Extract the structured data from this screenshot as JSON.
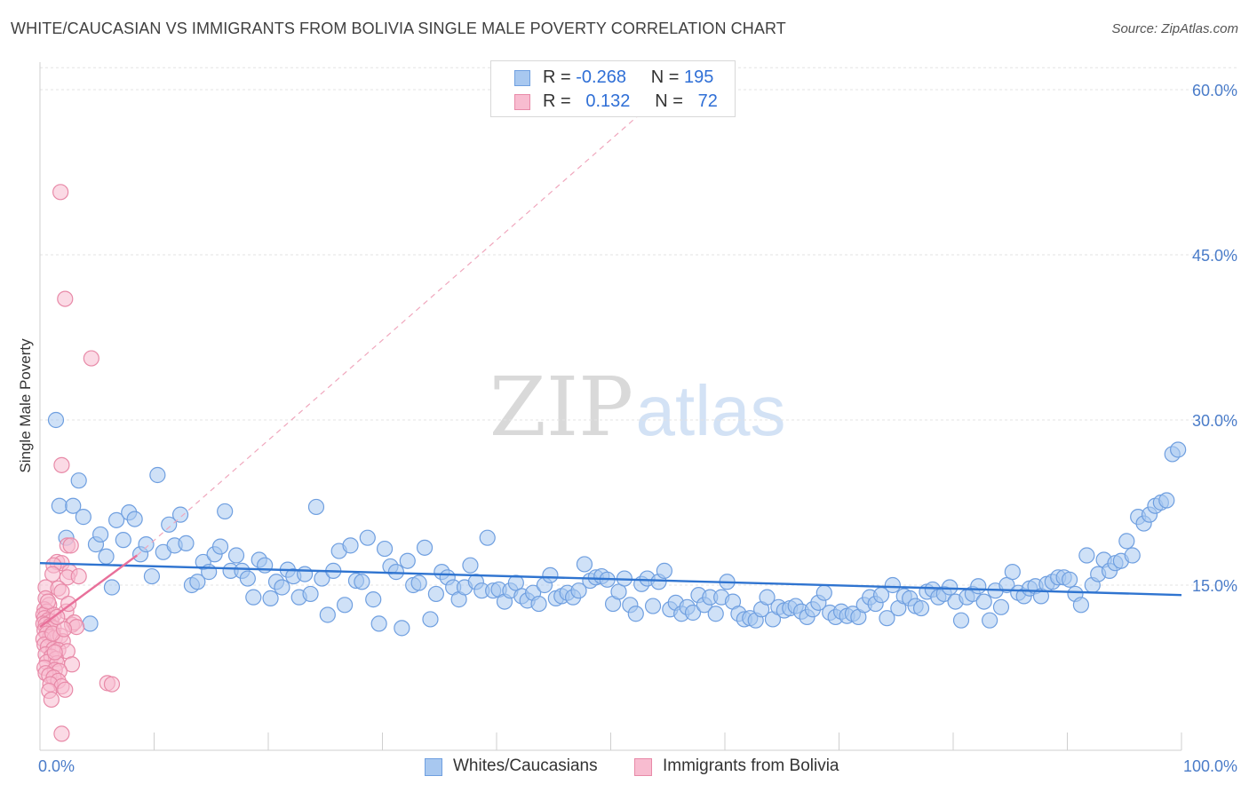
{
  "title": "WHITE/CAUCASIAN VS IMMIGRANTS FROM BOLIVIA SINGLE MALE POVERTY CORRELATION CHART",
  "source": "Source: ZipAtlas.com",
  "watermark": {
    "zip": "ZIP",
    "atlas": "atlas"
  },
  "legend": {
    "rows": [
      {
        "r_label": "R =",
        "r_value": "-0.268",
        "n_label": "N =",
        "n_value": "195",
        "color": "#a8c8f0",
        "border": "#6f9fe0"
      },
      {
        "r_label": "R =",
        "r_value": "0.132",
        "n_label": "N =",
        "n_value": "72",
        "color": "#f8bcd0",
        "border": "#e88aa8"
      }
    ]
  },
  "chart_data": {
    "type": "scatter",
    "title": "WHITE/CAUCASIAN VS IMMIGRANTS FROM BOLIVIA SINGLE MALE POVERTY CORRELATION CHART",
    "xlabel": "",
    "ylabel": "Single Male Poverty",
    "xlim": [
      0,
      100
    ],
    "ylim": [
      0,
      62.5
    ],
    "x_tick_labels": [
      "0.0%",
      "100.0%"
    ],
    "y_ticks": [
      15,
      30,
      45,
      60
    ],
    "y_tick_labels": [
      "15.0%",
      "30.0%",
      "45.0%",
      "60.0%"
    ],
    "grid": true,
    "legend_position": "bottom-center",
    "series": [
      {
        "name": "Whites/Caucasians",
        "color": "#a8c8f0",
        "edge": "#6f9fe0",
        "trend": {
          "x": [
            0,
            100
          ],
          "y": [
            17.0,
            14.1
          ],
          "color": "#2f74d0"
        },
        "points": [
          [
            1.4,
            30.0
          ],
          [
            1.7,
            22.2
          ],
          [
            2.3,
            19.3
          ],
          [
            2.9,
            22.2
          ],
          [
            3.4,
            24.5
          ],
          [
            3.8,
            21.2
          ],
          [
            4.4,
            11.5
          ],
          [
            4.9,
            18.7
          ],
          [
            5.3,
            19.6
          ],
          [
            5.8,
            17.6
          ],
          [
            6.3,
            14.8
          ],
          [
            6.7,
            20.9
          ],
          [
            7.3,
            19.1
          ],
          [
            7.8,
            21.6
          ],
          [
            8.3,
            21.0
          ],
          [
            8.8,
            17.8
          ],
          [
            9.3,
            18.7
          ],
          [
            9.8,
            15.8
          ],
          [
            10.3,
            25.0
          ],
          [
            10.8,
            18.0
          ],
          [
            11.3,
            20.5
          ],
          [
            11.8,
            18.6
          ],
          [
            12.3,
            21.4
          ],
          [
            12.8,
            18.8
          ],
          [
            13.3,
            15.0
          ],
          [
            13.8,
            15.3
          ],
          [
            14.3,
            17.1
          ],
          [
            14.8,
            16.2
          ],
          [
            15.3,
            17.8
          ],
          [
            15.8,
            18.5
          ],
          [
            16.2,
            21.7
          ],
          [
            16.7,
            16.3
          ],
          [
            17.2,
            17.7
          ],
          [
            17.7,
            16.3
          ],
          [
            18.2,
            15.6
          ],
          [
            18.7,
            13.9
          ],
          [
            19.2,
            17.3
          ],
          [
            19.7,
            16.8
          ],
          [
            20.2,
            13.8
          ],
          [
            20.7,
            15.3
          ],
          [
            21.2,
            14.8
          ],
          [
            21.7,
            16.4
          ],
          [
            22.2,
            15.8
          ],
          [
            22.7,
            13.9
          ],
          [
            23.2,
            16.0
          ],
          [
            23.7,
            14.2
          ],
          [
            24.2,
            22.1
          ],
          [
            24.7,
            15.6
          ],
          [
            25.2,
            12.3
          ],
          [
            25.7,
            16.3
          ],
          [
            26.2,
            18.1
          ],
          [
            26.7,
            13.2
          ],
          [
            27.2,
            18.6
          ],
          [
            27.7,
            15.4
          ],
          [
            28.2,
            15.3
          ],
          [
            28.7,
            19.3
          ],
          [
            29.2,
            13.7
          ],
          [
            29.7,
            11.5
          ],
          [
            30.2,
            18.3
          ],
          [
            30.7,
            16.7
          ],
          [
            31.2,
            16.2
          ],
          [
            31.7,
            11.1
          ],
          [
            32.2,
            17.2
          ],
          [
            32.7,
            15.0
          ],
          [
            33.2,
            15.2
          ],
          [
            33.7,
            18.4
          ],
          [
            34.2,
            11.9
          ],
          [
            34.7,
            14.2
          ],
          [
            35.2,
            16.2
          ],
          [
            35.7,
            15.7
          ],
          [
            36.2,
            14.8
          ],
          [
            36.7,
            13.7
          ],
          [
            37.2,
            14.8
          ],
          [
            37.7,
            16.8
          ],
          [
            38.2,
            15.3
          ],
          [
            38.7,
            14.5
          ],
          [
            39.2,
            19.3
          ],
          [
            39.7,
            14.5
          ],
          [
            40.2,
            14.6
          ],
          [
            40.7,
            13.5
          ],
          [
            41.2,
            14.5
          ],
          [
            41.7,
            15.2
          ],
          [
            42.2,
            14.0
          ],
          [
            42.7,
            13.6
          ],
          [
            43.2,
            14.3
          ],
          [
            43.7,
            13.3
          ],
          [
            44.2,
            15.0
          ],
          [
            44.7,
            15.9
          ],
          [
            45.2,
            13.8
          ],
          [
            45.7,
            14.0
          ],
          [
            46.2,
            14.3
          ],
          [
            46.7,
            13.9
          ],
          [
            47.2,
            14.5
          ],
          [
            47.7,
            16.9
          ],
          [
            48.2,
            15.4
          ],
          [
            48.7,
            15.7
          ],
          [
            49.2,
            15.8
          ],
          [
            49.7,
            15.5
          ],
          [
            50.2,
            13.3
          ],
          [
            50.7,
            14.4
          ],
          [
            51.2,
            15.6
          ],
          [
            51.7,
            13.2
          ],
          [
            52.2,
            12.4
          ],
          [
            52.7,
            15.1
          ],
          [
            53.2,
            15.6
          ],
          [
            53.7,
            13.1
          ],
          [
            54.2,
            15.3
          ],
          [
            54.7,
            16.3
          ],
          [
            55.2,
            12.8
          ],
          [
            55.7,
            13.4
          ],
          [
            56.2,
            12.4
          ],
          [
            56.7,
            13.0
          ],
          [
            57.2,
            12.5
          ],
          [
            57.7,
            14.1
          ],
          [
            58.2,
            13.2
          ],
          [
            58.7,
            13.9
          ],
          [
            59.2,
            12.4
          ],
          [
            59.7,
            13.9
          ],
          [
            60.2,
            15.3
          ],
          [
            60.7,
            13.5
          ],
          [
            61.2,
            12.4
          ],
          [
            61.7,
            11.9
          ],
          [
            62.2,
            12.0
          ],
          [
            62.7,
            11.8
          ],
          [
            63.2,
            12.8
          ],
          [
            63.7,
            13.9
          ],
          [
            64.2,
            11.9
          ],
          [
            64.7,
            13.0
          ],
          [
            65.2,
            12.7
          ],
          [
            65.7,
            12.9
          ],
          [
            66.2,
            13.1
          ],
          [
            66.7,
            12.6
          ],
          [
            67.2,
            12.1
          ],
          [
            67.7,
            12.8
          ],
          [
            68.2,
            13.4
          ],
          [
            68.7,
            14.3
          ],
          [
            69.2,
            12.5
          ],
          [
            69.7,
            12.1
          ],
          [
            70.2,
            12.6
          ],
          [
            70.7,
            12.2
          ],
          [
            71.2,
            12.4
          ],
          [
            71.7,
            12.1
          ],
          [
            72.2,
            13.2
          ],
          [
            72.7,
            13.9
          ],
          [
            73.2,
            13.3
          ],
          [
            73.7,
            14.1
          ],
          [
            74.2,
            12.0
          ],
          [
            74.7,
            15.0
          ],
          [
            75.2,
            12.9
          ],
          [
            75.7,
            14.0
          ],
          [
            76.2,
            13.8
          ],
          [
            76.7,
            13.1
          ],
          [
            77.2,
            12.9
          ],
          [
            77.7,
            14.4
          ],
          [
            78.2,
            14.6
          ],
          [
            78.7,
            13.9
          ],
          [
            79.2,
            14.2
          ],
          [
            79.7,
            14.8
          ],
          [
            80.2,
            13.5
          ],
          [
            80.7,
            11.8
          ],
          [
            81.2,
            13.9
          ],
          [
            81.7,
            14.2
          ],
          [
            82.2,
            14.9
          ],
          [
            82.7,
            13.5
          ],
          [
            83.2,
            11.8
          ],
          [
            83.7,
            14.5
          ],
          [
            84.2,
            13.0
          ],
          [
            84.7,
            15.0
          ],
          [
            85.2,
            16.2
          ],
          [
            85.7,
            14.3
          ],
          [
            86.2,
            14.0
          ],
          [
            86.7,
            14.7
          ],
          [
            87.2,
            14.9
          ],
          [
            87.7,
            14.0
          ],
          [
            88.2,
            15.1
          ],
          [
            88.7,
            15.3
          ],
          [
            89.2,
            15.7
          ],
          [
            89.7,
            15.7
          ],
          [
            90.2,
            15.5
          ],
          [
            90.7,
            14.2
          ],
          [
            91.2,
            13.2
          ],
          [
            91.7,
            17.7
          ],
          [
            92.2,
            15.0
          ],
          [
            92.7,
            16.0
          ],
          [
            93.2,
            17.3
          ],
          [
            93.7,
            16.3
          ],
          [
            94.2,
            17.0
          ],
          [
            94.7,
            17.2
          ],
          [
            95.2,
            19.0
          ],
          [
            95.7,
            17.7
          ],
          [
            96.2,
            21.2
          ],
          [
            96.7,
            20.6
          ],
          [
            97.2,
            21.4
          ],
          [
            97.7,
            22.2
          ],
          [
            98.2,
            22.5
          ],
          [
            98.7,
            22.7
          ],
          [
            99.2,
            26.9
          ],
          [
            99.7,
            27.3
          ]
        ]
      },
      {
        "name": "Immigrants from Bolivia",
        "color": "#f8bcd0",
        "edge": "#e88aa8",
        "trend": {
          "x": [
            0,
            8.5
          ],
          "y": [
            11.2,
            17.7
          ],
          "color": "#e8709a"
        },
        "dashed_extension": {
          "x": [
            8.5,
            55
          ],
          "y": [
            17.7,
            60.0
          ],
          "color": "#f0a7bd"
        },
        "points": [
          [
            1.8,
            50.7
          ],
          [
            2.2,
            41.0
          ],
          [
            4.5,
            35.6
          ],
          [
            1.9,
            25.9
          ],
          [
            2.4,
            18.6
          ],
          [
            2.7,
            18.6
          ],
          [
            1.5,
            17.1
          ],
          [
            1.9,
            17.0
          ],
          [
            1.2,
            16.8
          ],
          [
            2.6,
            16.2
          ],
          [
            1.1,
            16.0
          ],
          [
            2.4,
            15.7
          ],
          [
            3.4,
            15.8
          ],
          [
            0.5,
            14.8
          ],
          [
            1.6,
            14.7
          ],
          [
            1.9,
            14.4
          ],
          [
            0.5,
            13.8
          ],
          [
            0.8,
            13.2
          ],
          [
            0.4,
            12.8
          ],
          [
            0.6,
            12.6
          ],
          [
            2.3,
            12.6
          ],
          [
            0.3,
            12.3
          ],
          [
            1.2,
            12.3
          ],
          [
            0.4,
            12.0
          ],
          [
            0.7,
            11.8
          ],
          [
            1.0,
            11.7
          ],
          [
            0.3,
            11.5
          ],
          [
            0.5,
            11.4
          ],
          [
            0.9,
            11.3
          ],
          [
            1.2,
            11.1
          ],
          [
            2.8,
            11.4
          ],
          [
            3.0,
            11.6
          ],
          [
            3.2,
            11.2
          ],
          [
            0.4,
            10.9
          ],
          [
            0.6,
            10.6
          ],
          [
            0.9,
            10.3
          ],
          [
            0.3,
            10.1
          ],
          [
            1.3,
            10.2
          ],
          [
            1.8,
            10.4
          ],
          [
            2.0,
            9.9
          ],
          [
            0.4,
            9.6
          ],
          [
            0.7,
            9.4
          ],
          [
            1.2,
            9.2
          ],
          [
            1.6,
            9.1
          ],
          [
            2.4,
            9.0
          ],
          [
            0.5,
            8.7
          ],
          [
            1.0,
            8.5
          ],
          [
            1.4,
            8.3
          ],
          [
            0.6,
            8.0
          ],
          [
            1.5,
            7.9
          ],
          [
            2.8,
            7.8
          ],
          [
            0.4,
            7.5
          ],
          [
            1.3,
            7.3
          ],
          [
            1.7,
            7.2
          ],
          [
            0.5,
            7.0
          ],
          [
            0.8,
            6.8
          ],
          [
            1.2,
            6.6
          ],
          [
            1.6,
            6.3
          ],
          [
            0.9,
            6.0
          ],
          [
            1.9,
            5.8
          ],
          [
            5.9,
            6.1
          ],
          [
            6.3,
            6.0
          ],
          [
            0.8,
            5.4
          ],
          [
            2.2,
            5.5
          ],
          [
            1.0,
            4.6
          ],
          [
            1.9,
            1.5
          ],
          [
            1.1,
            10.6
          ],
          [
            2.1,
            11.0
          ],
          [
            0.7,
            13.5
          ],
          [
            1.5,
            12.1
          ],
          [
            2.5,
            13.3
          ],
          [
            1.3,
            8.9
          ]
        ]
      }
    ]
  }
}
